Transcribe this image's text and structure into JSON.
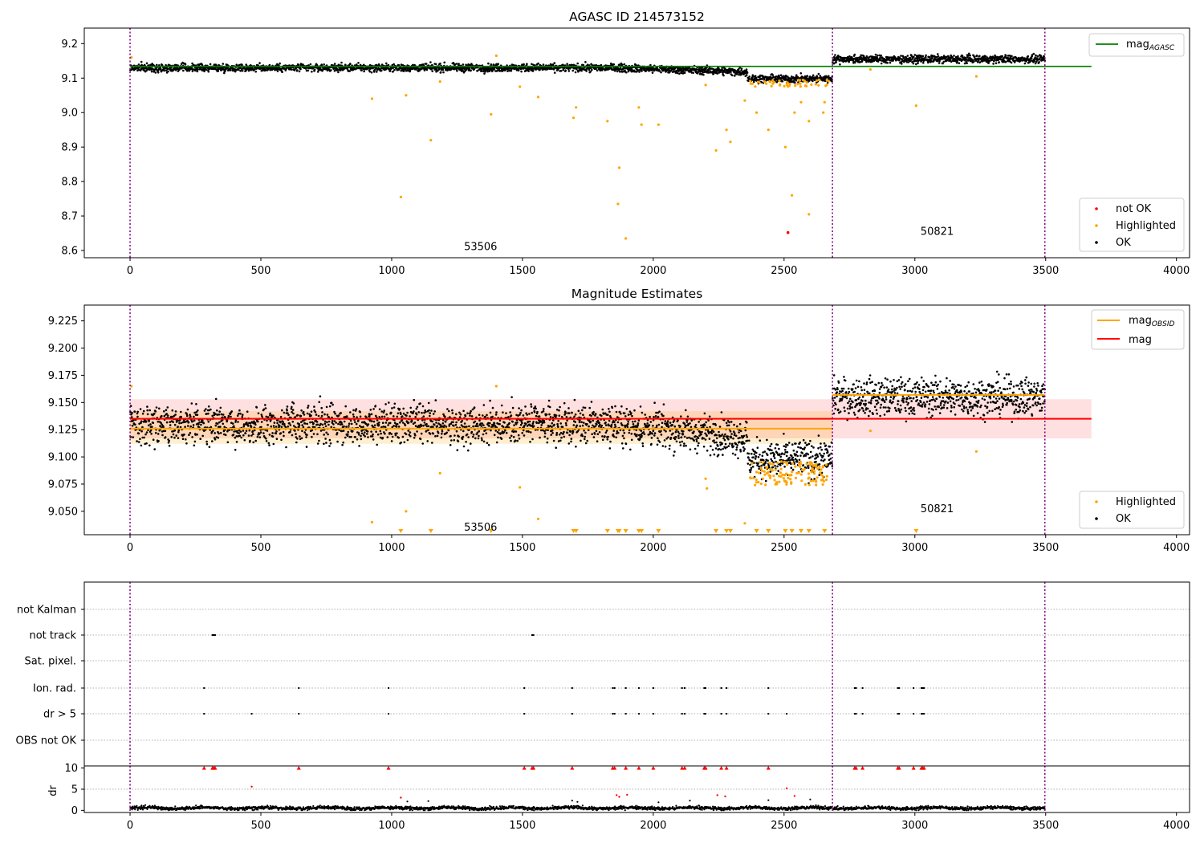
{
  "chart_data": [
    {
      "type": "scatter",
      "title": "AGASC ID 214573152",
      "xlim": [
        -175,
        4050
      ],
      "ylim": [
        8.579,
        9.245
      ],
      "x_ticks": [
        0,
        500,
        1000,
        1500,
        2000,
        2500,
        3000,
        3500,
        4000
      ],
      "y_ticks": [
        8.6,
        8.7,
        8.8,
        8.9,
        9.0,
        9.1,
        9.2
      ],
      "grid": false,
      "obs_boundaries": [
        0,
        2685,
        3497
      ],
      "obsid_labels": [
        {
          "text": "53506",
          "x": 1340,
          "y": 8.61
        },
        {
          "text": "50821",
          "x": 3085,
          "y": 8.655
        }
      ],
      "segments": [
        {
          "x_start": 0,
          "x_end": 2685,
          "ok_mean": 9.13,
          "ok_spread": 0.01,
          "start_drop_at": 2360,
          "drop_level": 9.098
        },
        {
          "x_start": 2685,
          "x_end": 3497,
          "ok_mean": 9.155,
          "ok_spread": 0.01
        }
      ],
      "lines": [
        {
          "name": "mag_AGASC",
          "y": 9.134,
          "x_start": 0,
          "x_end": 3675,
          "color": "#008000"
        }
      ],
      "series": [
        {
          "name": "not OK",
          "color": "#ff0000",
          "points": [
            [
              2515,
              8.652
            ]
          ]
        },
        {
          "name": "Highlighted",
          "color": "#ffa500",
          "points": [
            [
              5,
              9.16
            ],
            [
              925,
              9.04
            ],
            [
              1055,
              9.05
            ],
            [
              1035,
              8.755
            ],
            [
              1150,
              8.92
            ],
            [
              1185,
              9.09
            ],
            [
              1380,
              8.995
            ],
            [
              1400,
              9.165
            ],
            [
              1490,
              9.075
            ],
            [
              1560,
              9.045
            ],
            [
              1695,
              8.985
            ],
            [
              1705,
              9.015
            ],
            [
              1825,
              8.975
            ],
            [
              1865,
              8.735
            ],
            [
              1870,
              8.84
            ],
            [
              1895,
              8.635
            ],
            [
              1945,
              9.015
            ],
            [
              1955,
              8.965
            ],
            [
              2020,
              8.965
            ],
            [
              2200,
              9.08
            ],
            [
              2240,
              8.89
            ],
            [
              2280,
              8.95
            ],
            [
              2295,
              8.915
            ],
            [
              2350,
              9.035
            ],
            [
              2395,
              9.0
            ],
            [
              2440,
              8.95
            ],
            [
              2505,
              8.9
            ],
            [
              2530,
              8.76
            ],
            [
              2540,
              9.0
            ],
            [
              2565,
              9.03
            ],
            [
              2595,
              8.705
            ],
            [
              2595,
              8.975
            ],
            [
              2650,
              9.0
            ],
            [
              2655,
              9.03
            ],
            [
              2830,
              9.125
            ],
            [
              3005,
              9.02
            ],
            [
              3235,
              9.105
            ]
          ]
        },
        {
          "name": "OK",
          "color": "#000000",
          "points": "dense"
        }
      ],
      "legend": {
        "upper": [
          "mag_AGASC"
        ],
        "lower": [
          "not OK",
          "Highlighted",
          "OK"
        ],
        "placement": "upper right / lower right"
      }
    },
    {
      "type": "scatter",
      "title": "Magnitude Estimates",
      "xlim": [
        -175,
        4050
      ],
      "ylim": [
        9.0285,
        9.2395
      ],
      "x_ticks": [
        0,
        500,
        1000,
        1500,
        2000,
        2500,
        3000,
        3500,
        4000
      ],
      "y_ticks": [
        9.05,
        9.075,
        9.1,
        9.125,
        9.15,
        9.175,
        9.2,
        9.225
      ],
      "grid": false,
      "obs_boundaries": [
        0,
        2685,
        3497
      ],
      "obsid_labels": [
        {
          "text": "53506",
          "x": 1340,
          "y": 9.035
        },
        {
          "text": "50821",
          "x": 3085,
          "y": 9.052
        }
      ],
      "bands": [
        {
          "y0": 9.117,
          "y1": 9.153,
          "x_start": 0,
          "x_end": 3675,
          "color": "#ff0000",
          "opacity": 0.12
        },
        {
          "y0": 9.112,
          "y1": 9.142,
          "x_start": 0,
          "x_end": 2685,
          "color": "#ffa500",
          "opacity": 0.18
        }
      ],
      "lines": [
        {
          "name": "mag_OBSID",
          "color": "#ffa500",
          "segments": [
            [
              0,
              2685,
              9.126
            ],
            [
              2685,
              3497,
              9.157
            ]
          ]
        },
        {
          "name": "mag",
          "color": "#ff0000",
          "segments": [
            [
              0,
              3675,
              9.135
            ]
          ]
        }
      ],
      "series": [
        {
          "name": "Highlighted",
          "color": "#ffa500",
          "points": [
            [
              5,
              9.165
            ],
            [
              925,
              9.04
            ],
            [
              1055,
              9.05
            ],
            [
              1185,
              9.085
            ],
            [
              1400,
              9.165
            ],
            [
              1490,
              9.072
            ],
            [
              1560,
              9.043
            ],
            [
              2200,
              9.08
            ],
            [
              2205,
              9.071
            ],
            [
              2350,
              9.039
            ],
            [
              2830,
              9.124
            ],
            [
              3235,
              9.105
            ]
          ]
        },
        {
          "name": "OK",
          "color": "#000000",
          "points": "dense"
        }
      ],
      "below_axis_markers": [
        1035,
        1150,
        1380,
        1695,
        1705,
        1825,
        1865,
        1870,
        1895,
        1945,
        1955,
        2020,
        2240,
        2280,
        2295,
        2395,
        2440,
        2505,
        2530,
        2565,
        2595,
        2655,
        3005
      ],
      "legend": {
        "upper": [
          "mag_OBSID",
          "mag"
        ],
        "lower": [
          "Highlighted",
          "OK"
        ],
        "placement": "upper right / lower right"
      }
    },
    {
      "type": "scatter",
      "title": "",
      "xlim": [
        -175,
        4050
      ],
      "flag_categories": [
        "not Kalman",
        "not track",
        "Sat. pixel.",
        "Ion. rad.",
        "dr > 5",
        "OBS not OK"
      ],
      "flags": {
        "not Kalman": [],
        "not track": [
          315,
          320,
          325,
          1537,
          1542
        ],
        "Sat. pixel.": [],
        "Ion. rad.": [
          283,
          645,
          988,
          1507,
          1690,
          1845,
          1852,
          1895,
          1945,
          2000,
          2110,
          2120,
          2195,
          2200,
          2260,
          2280,
          2440,
          2770,
          2775,
          2800,
          2935,
          2940,
          2995,
          3025,
          3030,
          3035
        ],
        "dr > 5": [
          283,
          465,
          645,
          988,
          1507,
          1690,
          1845,
          1852,
          1895,
          1945,
          2000,
          2110,
          2120,
          2195,
          2200,
          2260,
          2280,
          2440,
          2510,
          2770,
          2775,
          2800,
          2935,
          2940,
          2995,
          3025,
          3030,
          3035
        ],
        "OBS not OK": []
      },
      "obs_boundaries": [
        0,
        2685,
        3497
      ]
    },
    {
      "type": "scatter",
      "ylabel": "dr",
      "xlim": [
        -175,
        4050
      ],
      "ylim": [
        -0.5,
        10.5
      ],
      "x_ticks": [
        0,
        500,
        1000,
        1500,
        2000,
        2500,
        3000,
        3500,
        4000
      ],
      "y_ticks": [
        0,
        5,
        10
      ],
      "obs_boundaries": [
        0,
        2685,
        3497
      ],
      "clipped_markers_at_10": [
        283,
        315,
        320,
        325,
        645,
        988,
        1507,
        1537,
        1542,
        1690,
        1845,
        1852,
        1895,
        1945,
        2000,
        2110,
        2120,
        2195,
        2200,
        2260,
        2280,
        2440,
        2770,
        2775,
        2800,
        2935,
        2940,
        2995,
        3025,
        3030,
        3035
      ],
      "red_points": [
        [
          465,
          5.6
        ],
        [
          1035,
          3.0
        ],
        [
          1860,
          3.6
        ],
        [
          1870,
          3.2
        ],
        [
          1900,
          3.7
        ],
        [
          2245,
          3.6
        ],
        [
          2275,
          3.3
        ],
        [
          2510,
          5.2
        ],
        [
          2540,
          3.4
        ]
      ],
      "black_outliers": [
        [
          1060,
          2.1
        ],
        [
          1140,
          2.2
        ],
        [
          1690,
          2.3
        ],
        [
          1710,
          2.0
        ],
        [
          2020,
          1.9
        ],
        [
          2140,
          2.3
        ],
        [
          2440,
          2.4
        ],
        [
          2600,
          2.6
        ]
      ],
      "series": [
        {
          "name": "dr",
          "color": "#000000",
          "points": "dense",
          "typical": 0.6
        }
      ]
    }
  ]
}
